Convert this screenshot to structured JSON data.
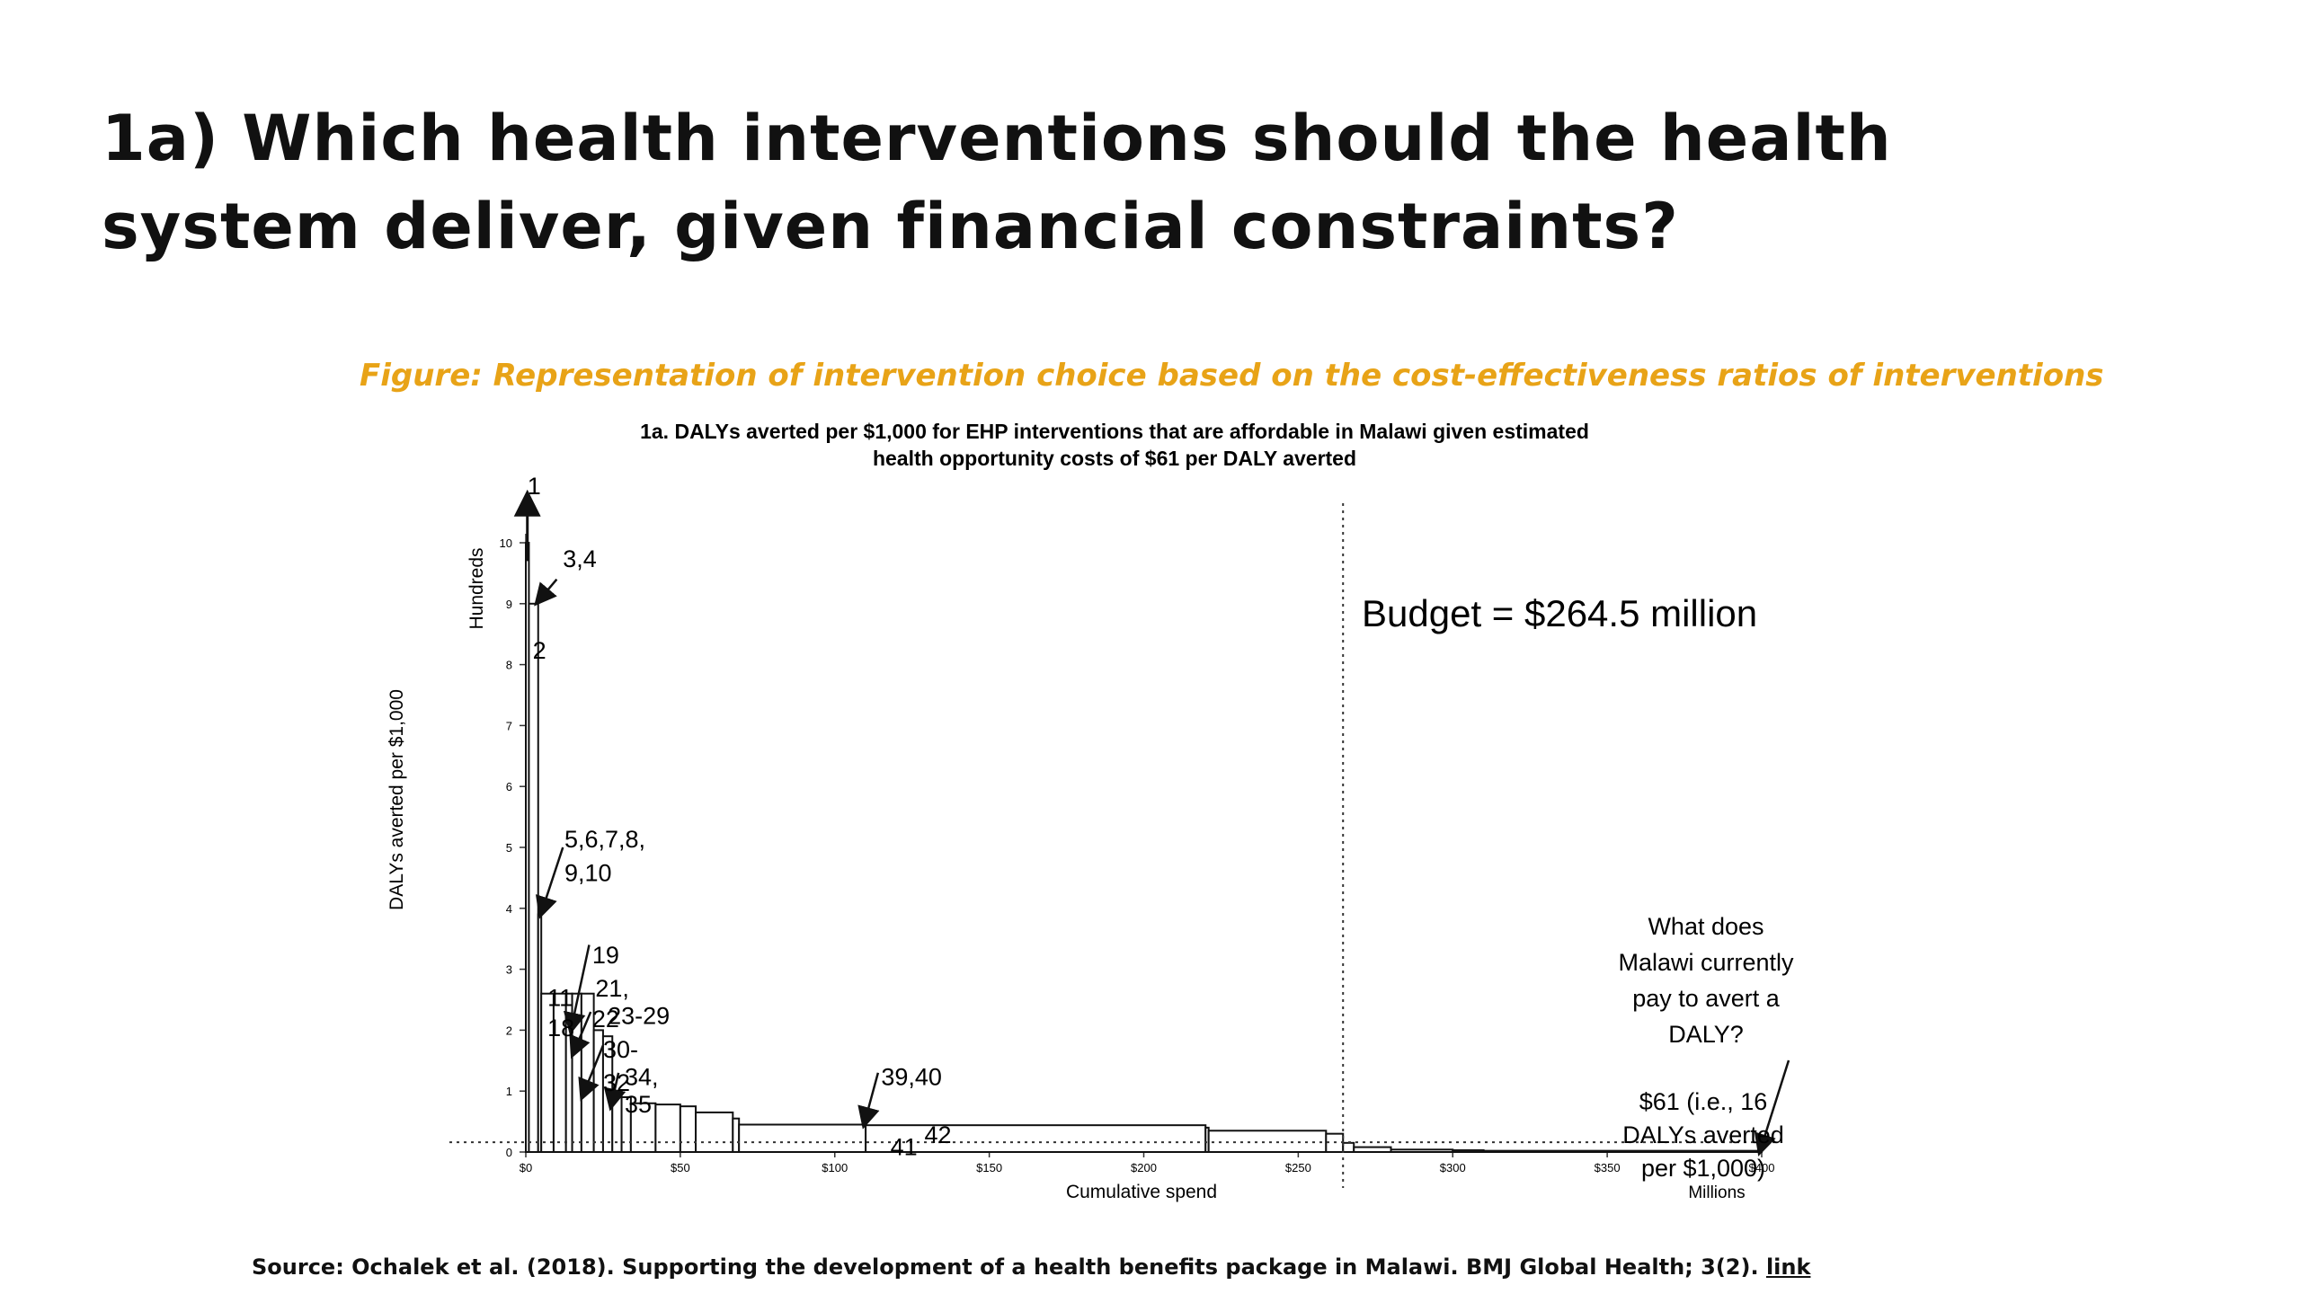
{
  "slide": {
    "title": "1a) Which health interventions should the health system deliver, given financial constraints?",
    "figure_caption": "Figure: Representation of intervention choice based on the cost-effectiveness ratios of interventions",
    "source_text": "Source: Ochalek et al. (2018). Supporting the development of a health benefits package in Malawi. BMJ Global Health; 3(2).",
    "source_link": "link"
  },
  "chart_data": {
    "type": "bar",
    "title_line1": "1a. DALYs averted per $1,000 for EHP interventions that are affordable in Malawi given estimated",
    "title_line2": "health opportunity costs of $61 per DALY averted",
    "xlabel": "Cumulative spend",
    "xunit": "Millions",
    "ylabel": "DALYs averted per $1,000",
    "yunit": "Hundreds",
    "xlim": [
      0,
      400
    ],
    "ylim": [
      0,
      10
    ],
    "xticks": [
      {
        "value": 0,
        "label": "$0"
      },
      {
        "value": 50,
        "label": "$50"
      },
      {
        "value": 100,
        "label": "$100"
      },
      {
        "value": 150,
        "label": "$150"
      },
      {
        "value": 200,
        "label": "$200"
      },
      {
        "value": 250,
        "label": "$250"
      },
      {
        "value": 300,
        "label": "$300"
      },
      {
        "value": 350,
        "label": "$350"
      },
      {
        "value": 400,
        "label": "$400"
      }
    ],
    "yticks": [
      0,
      1,
      2,
      3,
      4,
      5,
      6,
      7,
      8,
      9,
      10
    ],
    "budget_millions": 264.5,
    "threshold_hundreds": 0.16,
    "budget_label": "Budget = $264.5 million",
    "question_lines": [
      "What does",
      "Malawi currently",
      "pay to avert a",
      "DALY?"
    ],
    "answer_lines": [
      "$61 (i.e., 16",
      "DALYs averted",
      "per $1,000)"
    ],
    "bars": [
      {
        "x0": 0,
        "x1": 1,
        "y": 10
      },
      {
        "x0": 1,
        "x2": 0,
        "x1": 4,
        "y": 9
      },
      {
        "x0": 4,
        "x1": 5,
        "y": 3.9
      },
      {
        "x0": 5,
        "x1": 9,
        "y": 2.6
      },
      {
        "x0": 9,
        "x1": 13,
        "y": 2.6
      },
      {
        "x0": 13,
        "x1": 15,
        "y": 2.6
      },
      {
        "x0": 15,
        "x1": 18,
        "y": 2.6
      },
      {
        "x0": 18,
        "x1": 22,
        "y": 2.6
      },
      {
        "x0": 22,
        "x1": 25,
        "y": 2.0
      },
      {
        "x0": 25,
        "x1": 28,
        "y": 1.9
      },
      {
        "x0": 28,
        "x1": 31,
        "y": 0.95
      },
      {
        "x0": 31,
        "x1": 34,
        "y": 0.9
      },
      {
        "x0": 34,
        "x1": 42,
        "y": 0.8
      },
      {
        "x0": 42,
        "x1": 50,
        "y": 0.78
      },
      {
        "x0": 50,
        "x1": 55,
        "y": 0.75
      },
      {
        "x0": 55,
        "x1": 67,
        "y": 0.65
      },
      {
        "x0": 67,
        "x1": 69,
        "y": 0.55
      },
      {
        "x0": 69,
        "x1": 110,
        "y": 0.45
      },
      {
        "x0": 110,
        "x1": 220,
        "y": 0.44
      },
      {
        "x0": 220,
        "x1": 221,
        "y": 0.4
      },
      {
        "x0": 221,
        "x1": 259,
        "y": 0.35
      },
      {
        "x0": 259,
        "x1": 264.5,
        "y": 0.3
      },
      {
        "x0": 264.5,
        "x1": 268,
        "y": 0.15
      },
      {
        "x0": 268,
        "x1": 280,
        "y": 0.08
      },
      {
        "x0": 280,
        "x1": 300,
        "y": 0.04
      },
      {
        "x0": 300,
        "x1": 310,
        "y": 0.03
      },
      {
        "x0": 310,
        "x1": 400,
        "y": 0.02
      }
    ],
    "labels": [
      {
        "text": "1",
        "x": 0.5,
        "y": 10.8
      },
      {
        "text": "3,4",
        "x": 12,
        "y": 9.6
      },
      {
        "text": "2",
        "x": 2.2,
        "y": 8.1
      },
      {
        "text": "5,6,7,8,",
        "x": 12.5,
        "y": 5.0
      },
      {
        "text": "9,10",
        "x": 12.5,
        "y": 4.45
      },
      {
        "text": "19",
        "x": 21.5,
        "y": 3.1
      },
      {
        "text": "11",
        "x": 7,
        "y": 2.4
      },
      {
        "text": "21,",
        "x": 22.5,
        "y": 2.55
      },
      {
        "text": "18",
        "x": 7,
        "y": 1.9
      },
      {
        "text": "22",
        "x": 21.5,
        "y": 2.05
      },
      {
        "text": "23-29",
        "x": 26.5,
        "y": 2.1
      },
      {
        "text": "30-",
        "x": 25,
        "y": 1.55
      },
      {
        "text": "32",
        "x": 25,
        "y": 1.0
      },
      {
        "text": "34,",
        "x": 32,
        "y": 1.1
      },
      {
        "text": "35",
        "x": 32,
        "y": 0.65
      },
      {
        "text": "39,40",
        "x": 115,
        "y": 1.1
      },
      {
        "text": "41",
        "x": 118,
        "y": -0.05
      },
      {
        "text": "42",
        "x": 129,
        "y": 0.15
      }
    ]
  }
}
